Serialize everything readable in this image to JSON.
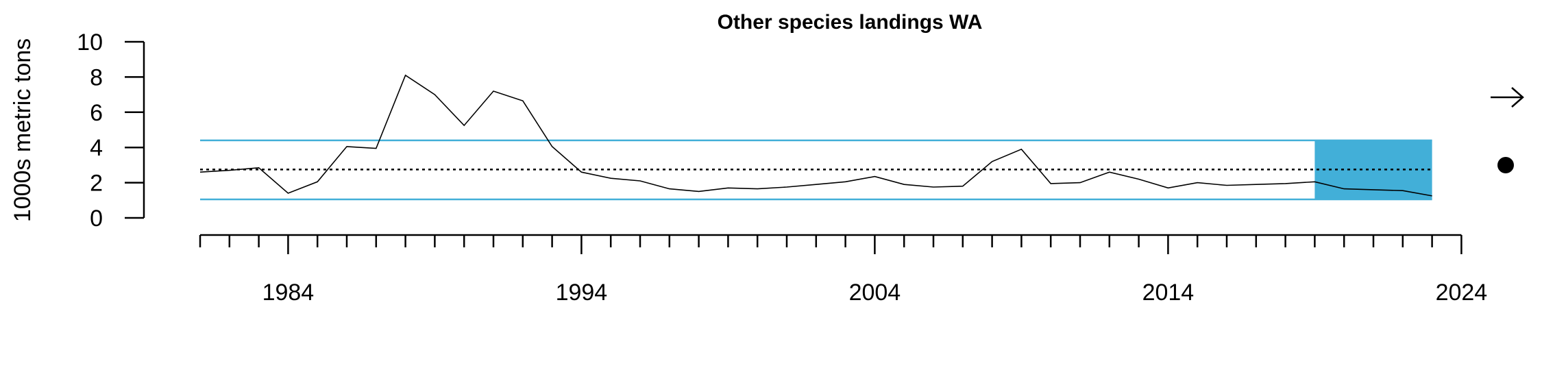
{
  "chart_data": {
    "type": "line",
    "title": "Other species landings WA",
    "ylabel": "1000s metric tons",
    "xlabel": "",
    "xlim": [
      1981,
      2024
    ],
    "ylim": [
      0,
      10
    ],
    "y_ticks": [
      "0",
      "2",
      "4",
      "6",
      "8",
      "10"
    ],
    "x_ticks": [
      "1984",
      "1994",
      "2004",
      "2014",
      "2024"
    ],
    "series": [
      {
        "name": "landings",
        "x": [
          1981,
          1982,
          1983,
          1984,
          1985,
          1986,
          1987,
          1988,
          1989,
          1990,
          1991,
          1992,
          1993,
          1994,
          1995,
          1996,
          1997,
          1998,
          1999,
          2000,
          2001,
          2002,
          2003,
          2004,
          2005,
          2006,
          2007,
          2008,
          2009,
          2010,
          2011,
          2012,
          2013,
          2014,
          2015,
          2016,
          2017,
          2018,
          2019,
          2020,
          2021,
          2022,
          2023
        ],
        "values": [
          2.6,
          2.7,
          2.85,
          1.4,
          2.05,
          4.05,
          3.95,
          8.1,
          7.0,
          5.25,
          7.2,
          6.65,
          4.05,
          2.6,
          2.25,
          2.1,
          1.65,
          1.5,
          1.7,
          1.65,
          1.75,
          1.9,
          2.05,
          2.35,
          1.9,
          1.75,
          1.8,
          3.2,
          3.9,
          1.95,
          2.0,
          2.6,
          2.2,
          1.7,
          2.0,
          1.85,
          1.9,
          1.95,
          2.05,
          1.65,
          1.6,
          1.55,
          1.25
        ]
      }
    ],
    "mean": 2.75,
    "upper_sd": 4.4,
    "lower_sd": 1.05,
    "highlight_range": [
      2019,
      2023
    ],
    "colors": {
      "band": "#42afd8",
      "line": "#000000"
    },
    "trend_indicator": "right-arrow-icon",
    "mean_indicator": "filled-circle-icon"
  }
}
